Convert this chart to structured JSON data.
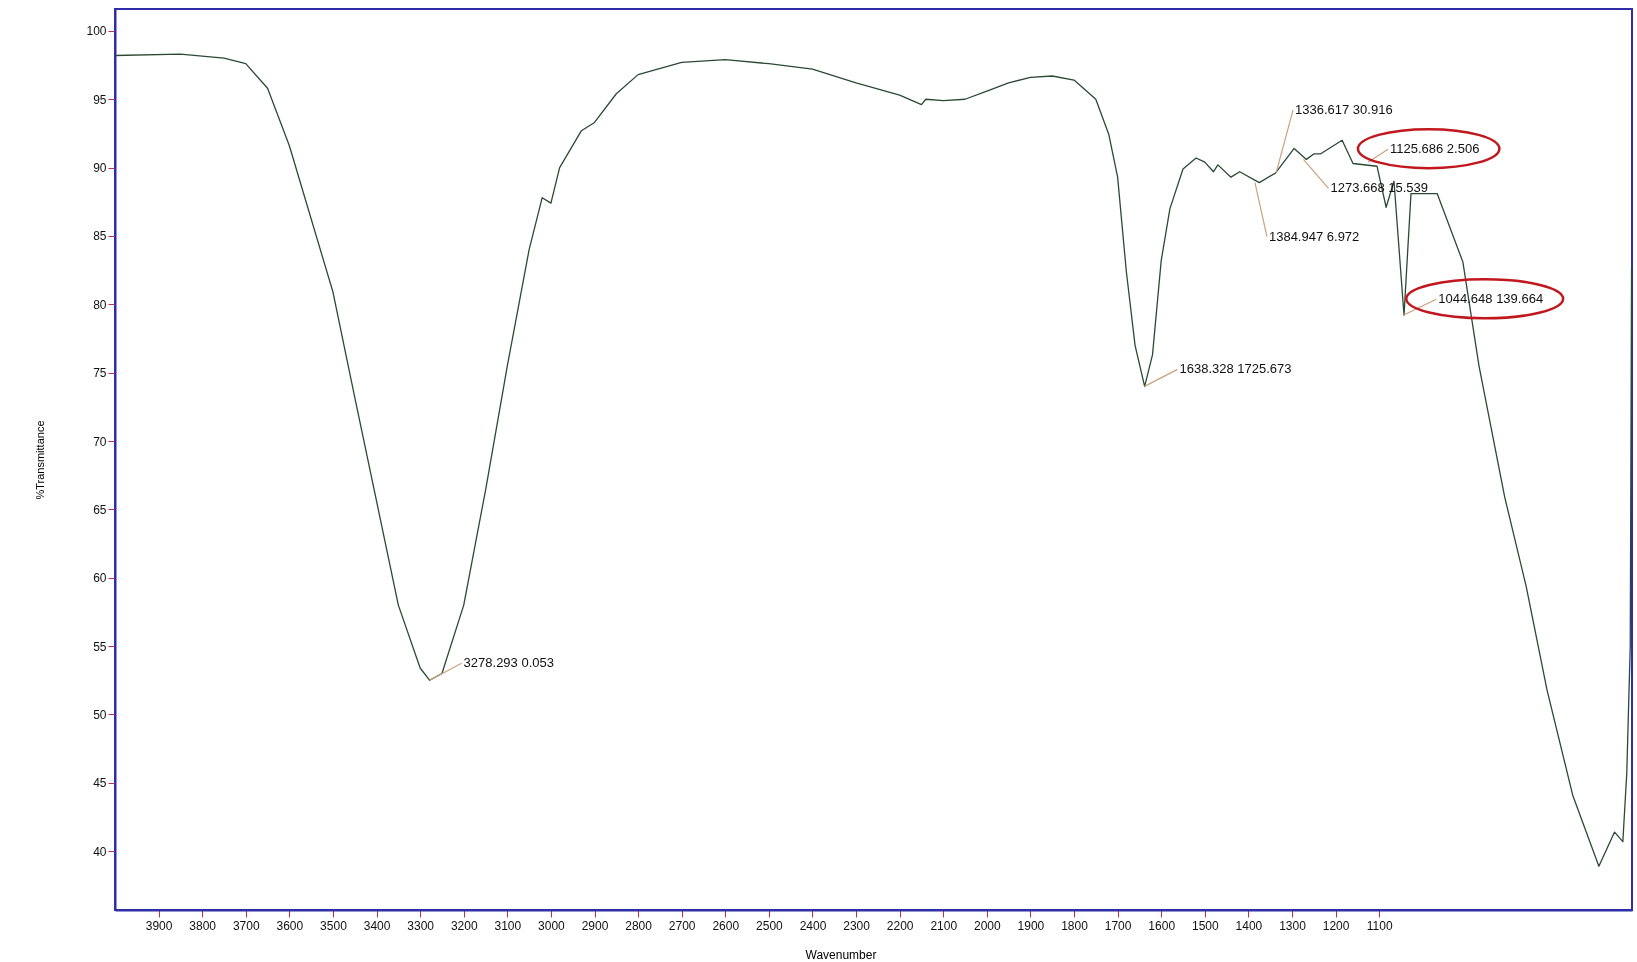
{
  "chart_data": {
    "type": "line",
    "xlabel": "Wavenumber",
    "ylabel": "%Transmittance",
    "xlim": [
      4000,
      520
    ],
    "ylim": [
      35.7,
      101.6
    ],
    "xticks": [
      3900,
      3800,
      3700,
      3600,
      3500,
      3400,
      3300,
      3200,
      3100,
      3000,
      2900,
      2800,
      2700,
      2600,
      2500,
      2400,
      2300,
      2200,
      2100,
      2000,
      1900,
      1800,
      1700,
      1600,
      1500,
      1400,
      1300,
      1200,
      1100
    ],
    "yticks": [
      40,
      45,
      50,
      55,
      60,
      65,
      70,
      75,
      80,
      85,
      90,
      95,
      100
    ],
    "grid": false,
    "series": [
      {
        "color": "#2b4a34",
        "x": [
          4000,
          3850,
          3750,
          3700,
          3650,
          3600,
          3500,
          3450,
          3400,
          3350,
          3300,
          3278,
          3250,
          3200,
          3150,
          3100,
          3050,
          3020,
          3000,
          2980,
          2930,
          2900,
          2850,
          2800,
          2700,
          2600,
          2500,
          2400,
          2300,
          2200,
          2150,
          2140,
          2100,
          2050,
          2000,
          1950,
          1900,
          1850,
          1800,
          1750,
          1720,
          1700,
          1680,
          1660,
          1638,
          1620,
          1600,
          1580,
          1550,
          1520,
          1500,
          1480,
          1470,
          1440,
          1420,
          1375,
          1338,
          1295,
          1267,
          1250,
          1235,
          1185,
          1160,
          1105,
          1084,
          1066,
          1043,
          1027,
          967,
          908,
          871,
          812,
          763,
          715,
          656,
          596,
          560,
          541,
          532,
          524,
          521
        ],
        "values": [
          98.2,
          98.3,
          98.0,
          97.6,
          95.8,
          91.6,
          80.9,
          73.2,
          65.6,
          58,
          53.4,
          52.5,
          53,
          58,
          66.4,
          75.5,
          84,
          87.8,
          87.4,
          90,
          92.7,
          93.3,
          95.4,
          96.8,
          97.7,
          97.9,
          97.6,
          97.2,
          96.2,
          95.3,
          94.6,
          95.0,
          94.9,
          95,
          95.6,
          96.2,
          96.6,
          96.7,
          96.4,
          95,
          92.4,
          89.3,
          82.4,
          77,
          74,
          76.3,
          83.2,
          87,
          89.9,
          90.7,
          90.4,
          89.7,
          90.2,
          89.3,
          89.7,
          88.9,
          89.6,
          91.4,
          90.6,
          91,
          91,
          92,
          90.3,
          90.1,
          87.1,
          89,
          79.2,
          88.1,
          88.1,
          83.1,
          75.5,
          65.9,
          59.4,
          51.8,
          44.1,
          38.9,
          41.4,
          40.7,
          45.7,
          55,
          82.8
        ]
      }
    ],
    "annotations": [
      {
        "text": "3278.293  0.053",
        "x": 3278.293,
        "y": 52.5
      },
      {
        "text": "1638.328  1725.673",
        "x": 1638.328,
        "y": 74
      },
      {
        "text": "1336.617  30.916",
        "x": 1336.617,
        "y": 89.6
      },
      {
        "text": "1125.686  2.506",
        "x": 1125.686,
        "y": 90.4
      },
      {
        "text": "1273.668  15.539",
        "x": 1273.668,
        "y": 90.6
      },
      {
        "text": "1384.947  6.972",
        "x": 1384.947,
        "y": 88.9
      },
      {
        "text": "1044.648  139.664",
        "x": 1044.648,
        "y": 79.2
      }
    ]
  }
}
